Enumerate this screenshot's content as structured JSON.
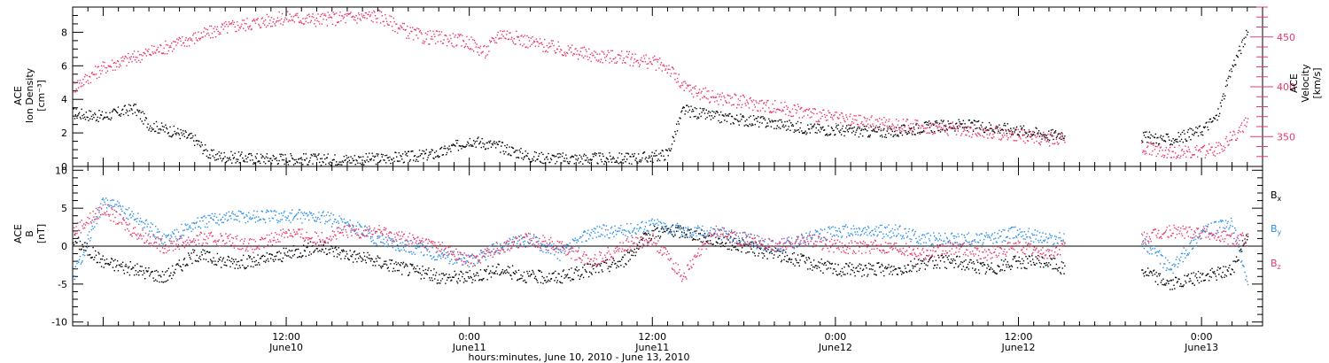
{
  "chart_data": [
    {
      "type": "scatter",
      "xlabel": "hours:minutes, June 10, 2010 - June 13, 2010",
      "x_ticks": [
        {
          "time": "12:00",
          "date": "June10"
        },
        {
          "time": "0:00",
          "date": "June11"
        },
        {
          "time": "12:00",
          "date": "June11"
        },
        {
          "time": "0:00",
          "date": "June12"
        },
        {
          "time": "12:00",
          "date": "June12"
        },
        {
          "time": "0:00",
          "date": "June13"
        }
      ],
      "xlim_hours_from_2010-06-10T00:00": [
        -2,
        76
      ],
      "left_axis": {
        "label_lines": [
          "ACE",
          "Ion Density",
          "[cm⁻³]"
        ],
        "ylim": [
          0,
          9.5
        ],
        "ticks": [
          "0",
          "2",
          "4",
          "6",
          "8"
        ],
        "color": "#000000"
      },
      "right_axis": {
        "label_lines": [
          "ACE",
          "Velocity",
          "[km/s]"
        ],
        "ylim": [
          320,
          480
        ],
        "ticks": [
          "350",
          "400",
          "450"
        ],
        "color": "#e8386a"
      },
      "series": [
        {
          "name": "Ion Density",
          "axis": "left",
          "color": "#000000",
          "x": [
            -2,
            0,
            2,
            3,
            5,
            6,
            7,
            8,
            10,
            12,
            14,
            16,
            18,
            20,
            22,
            24,
            26,
            28,
            30,
            32,
            34,
            36,
            37,
            38,
            40,
            42,
            44,
            46,
            48,
            50,
            52,
            54,
            56,
            58,
            60,
            62,
            63,
            68,
            70,
            72,
            73,
            74,
            75
          ],
          "y": [
            3.2,
            3.0,
            3.5,
            2.5,
            2.0,
            1.6,
            0.7,
            0.6,
            0.5,
            0.5,
            0.45,
            0.45,
            0.5,
            0.6,
            0.8,
            1.6,
            1.2,
            0.6,
            0.5,
            0.5,
            0.5,
            0.6,
            0.8,
            3.4,
            3.0,
            2.8,
            2.6,
            2.3,
            2.2,
            2.1,
            2.1,
            2.4,
            2.5,
            2.4,
            2.2,
            1.9,
            2.0,
            1.8,
            1.6,
            2.2,
            3.0,
            6.0,
            8.0
          ]
        },
        {
          "name": "Velocity",
          "axis": "right",
          "color": "#e8386a",
          "x": [
            -2,
            0,
            2,
            4,
            6,
            8,
            10,
            12,
            14,
            16,
            18,
            20,
            21,
            22,
            24,
            25,
            26,
            28,
            30,
            32,
            34,
            36,
            37,
            38,
            40,
            42,
            44,
            46,
            48,
            50,
            52,
            54,
            56,
            58,
            60,
            62,
            63,
            68,
            70,
            72,
            73,
            74,
            75
          ],
          "y": [
            400,
            420,
            430,
            440,
            450,
            460,
            465,
            470,
            468,
            470,
            472,
            455,
            450,
            450,
            445,
            435,
            455,
            445,
            438,
            432,
            430,
            425,
            420,
            400,
            390,
            385,
            380,
            375,
            368,
            365,
            362,
            360,
            358,
            355,
            352,
            348,
            348,
            340,
            335,
            335,
            338,
            350,
            365
          ]
        }
      ],
      "gaps_hours": [
        [
          63,
          68
        ]
      ]
    },
    {
      "type": "scatter",
      "ylabel_lines": [
        "ACE",
        "B",
        "[nT]"
      ],
      "ylim": [
        -10.5,
        10.5
      ],
      "y_ticks": [
        "-10",
        "-5",
        "0",
        "5",
        "10"
      ],
      "zero_line": true,
      "series": [
        {
          "name": "Bx",
          "label": "B",
          "sub": "x",
          "color": "#000000",
          "x": [
            -2,
            0,
            2,
            4,
            6,
            8,
            10,
            12,
            14,
            16,
            18,
            20,
            22,
            24,
            26,
            28,
            30,
            32,
            34,
            36,
            38,
            40,
            42,
            44,
            46,
            48,
            50,
            52,
            54,
            56,
            58,
            60,
            62,
            63,
            68,
            70,
            72,
            74,
            75
          ],
          "y": [
            1,
            -2,
            -3,
            -4,
            -1,
            -2,
            -2,
            -1,
            0,
            -1,
            -2,
            -3,
            -4,
            -4,
            -3,
            -4,
            -4,
            -3,
            -2,
            2,
            2,
            1,
            0,
            -1,
            -2,
            -3,
            -3,
            -3,
            -2,
            -2,
            -3,
            -2,
            -2,
            -3,
            -3,
            -5,
            -4,
            -3,
            2
          ],
          "gaps_hours": [
            [
              63,
              68
            ]
          ]
        },
        {
          "name": "By",
          "label": "B",
          "sub": "y",
          "color": "#2b8fe8",
          "x": [
            -2,
            0,
            2,
            4,
            6,
            8,
            10,
            12,
            14,
            16,
            18,
            20,
            22,
            24,
            26,
            28,
            30,
            32,
            34,
            36,
            38,
            40,
            42,
            44,
            46,
            48,
            50,
            52,
            54,
            56,
            58,
            60,
            62,
            63,
            68,
            70,
            72,
            74,
            75
          ],
          "y": [
            -4,
            6,
            4,
            1,
            3,
            4,
            4,
            4,
            4,
            3,
            1,
            0,
            -1,
            -2,
            0,
            1,
            -1,
            2,
            2,
            3,
            2,
            2,
            1,
            0,
            1,
            2,
            2,
            2,
            1,
            1,
            1,
            2,
            1,
            1,
            1,
            -3,
            2,
            3,
            -5
          ],
          "gaps_hours": [
            [
              63,
              68
            ]
          ]
        },
        {
          "name": "Bz",
          "label": "B",
          "sub": "z",
          "color": "#e8386a",
          "x": [
            -2,
            0,
            2,
            4,
            6,
            8,
            10,
            12,
            14,
            16,
            18,
            20,
            22,
            24,
            26,
            28,
            30,
            32,
            34,
            36,
            38,
            40,
            42,
            44,
            46,
            48,
            50,
            52,
            54,
            56,
            58,
            60,
            62,
            63,
            68,
            70,
            72,
            74,
            75
          ],
          "y": [
            2,
            5,
            2,
            0,
            1,
            1,
            0,
            2,
            1,
            2,
            2,
            1,
            0,
            -2,
            0,
            1,
            0,
            -2,
            0,
            1,
            -4,
            2,
            1,
            0,
            1,
            0,
            0,
            0,
            -1,
            0,
            -1,
            0,
            -1,
            0,
            1,
            2,
            2,
            1,
            1
          ],
          "gaps_hours": [
            [
              63,
              68
            ]
          ]
        }
      ]
    }
  ]
}
